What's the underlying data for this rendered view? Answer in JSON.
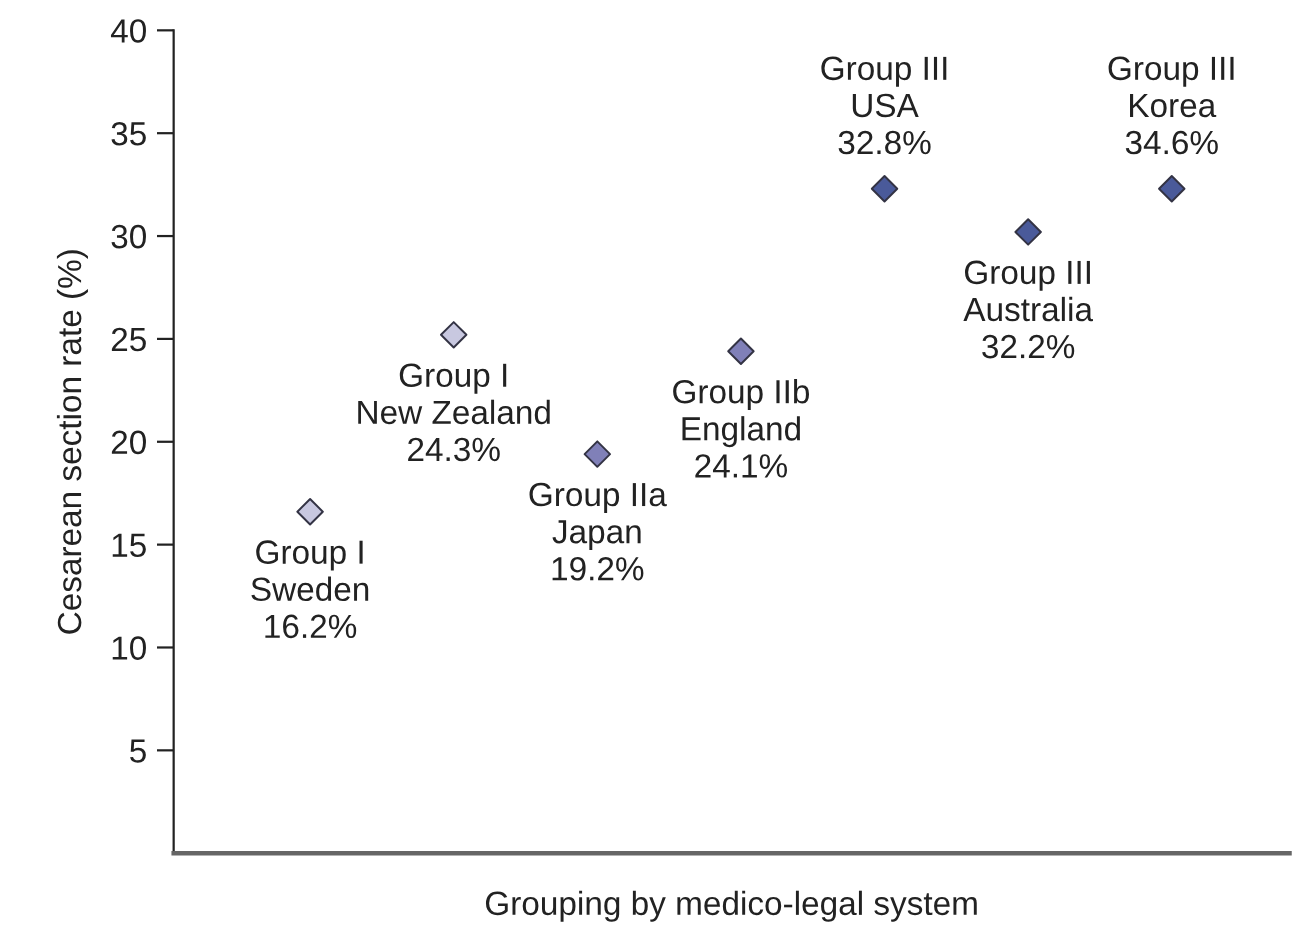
{
  "chart_data": {
    "type": "scatter",
    "xlabel": "Grouping by medico-legal system",
    "ylabel": "Cesarean section rate (%)",
    "categories": [
      null,
      null,
      null,
      null,
      null,
      null,
      null
    ],
    "values": [
      16.6,
      25.2,
      19.4,
      24.4,
      32.3,
      30.2,
      32.3
    ],
    "colors": [
      "#c8c8e0",
      "#c8c8e0",
      "#8080b8",
      "#8080b8",
      "#4a5a9a",
      "#4a5a9a",
      "#4a5a9a"
    ],
    "value_labels": [
      "Group I\nSweden\n16.2%",
      "Group I\nNew Zealand\n24.3%",
      "Group IIa\nJapan\n19.2%",
      "Group IIb\nEngland\n24.1%",
      "Group III\nUSA\n32.8%",
      "Group III\nAustralia\n32.2%",
      "Group III\nKorea\n34.6%"
    ],
    "marker": "diamond",
    "ylim": [
      0,
      40
    ],
    "yticks": [
      5,
      10,
      15,
      20,
      25,
      30,
      35,
      40
    ],
    "grid": false,
    "legend": false
  }
}
